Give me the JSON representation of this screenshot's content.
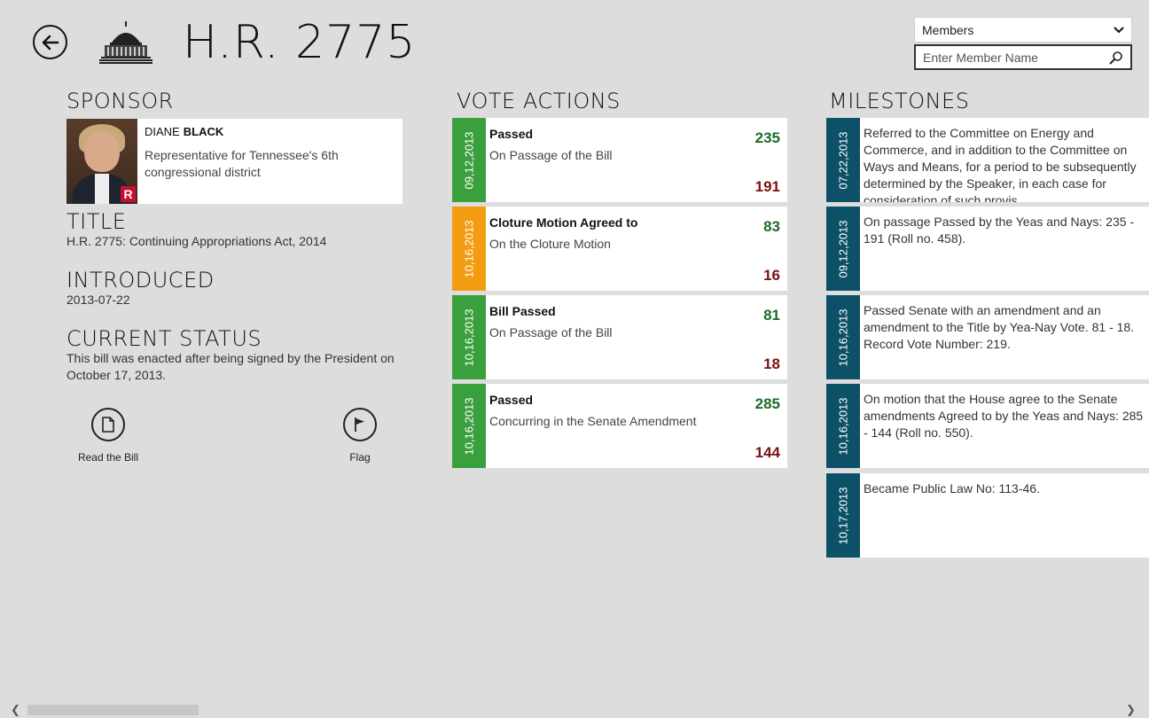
{
  "header": {
    "title": "H.R. 2775",
    "back_icon": "back-arrow-icon",
    "logo_icon": "capitol-icon"
  },
  "member_lookup": {
    "dropdown_value": "Members",
    "search_placeholder": "Enter Member Name"
  },
  "sponsor": {
    "heading": "SPONSOR",
    "first_name": "DIANE",
    "last_name": "BLACK",
    "description": "Representative for Tennessee's 6th congressional district",
    "party": "R"
  },
  "title_section": {
    "heading": "TITLE",
    "value": "H.R. 2775: Continuing Appropriations Act, 2014"
  },
  "introduced": {
    "heading": "INTRODUCED",
    "value": "2013-07-22"
  },
  "status": {
    "heading": "CURRENT STATUS",
    "value": "This bill was enacted after being signed by the President on October 17, 2013."
  },
  "actions": {
    "read_label": "Read the Bill",
    "flag_label": "Flag"
  },
  "vote_actions": {
    "heading": "VOTE ACTIONS",
    "items": [
      {
        "date": "09,12,2013",
        "result": "Passed",
        "question": "On Passage of the Bill",
        "yeas": "235",
        "nays": "191",
        "color": "#3aa03e"
      },
      {
        "date": "10,16,2013",
        "result": "Cloture Motion Agreed to",
        "question": "On the Cloture Motion",
        "yeas": "83",
        "nays": "16",
        "color": "#f39c12"
      },
      {
        "date": "10,16,2013",
        "result": "Bill Passed",
        "question": "On Passage of the Bill",
        "yeas": "81",
        "nays": "18",
        "color": "#3aa03e"
      },
      {
        "date": "10,16,2013",
        "result": "Passed",
        "question": "Concurring in the Senate Amendment",
        "yeas": "285",
        "nays": "144",
        "color": "#3aa03e"
      }
    ]
  },
  "milestones": {
    "heading": "MILESTONES",
    "items": [
      {
        "date": "07,22,2013",
        "text": "Referred to the Committee on Energy and Commerce, and in addition to the Committee on Ways and Means, for a period to be subsequently determined by the Speaker, in each case for consideration of such provis..."
      },
      {
        "date": "09,12,2013",
        "text": "On passage Passed by the Yeas and Nays: 235 - 191 (Roll no. 458)."
      },
      {
        "date": "10,16,2013",
        "text": "Passed Senate with an amendment and an amendment to the Title by Yea-Nay Vote. 81 - 18. Record Vote Number: 219."
      },
      {
        "date": "10,16,2013",
        "text": "On motion that the House agree to the Senate amendments Agreed to by the Yeas and Nays: 285 - 144 (Roll no. 550)."
      },
      {
        "date": "10,17,2013",
        "text": "Became Public Law No: 113-46."
      }
    ]
  }
}
